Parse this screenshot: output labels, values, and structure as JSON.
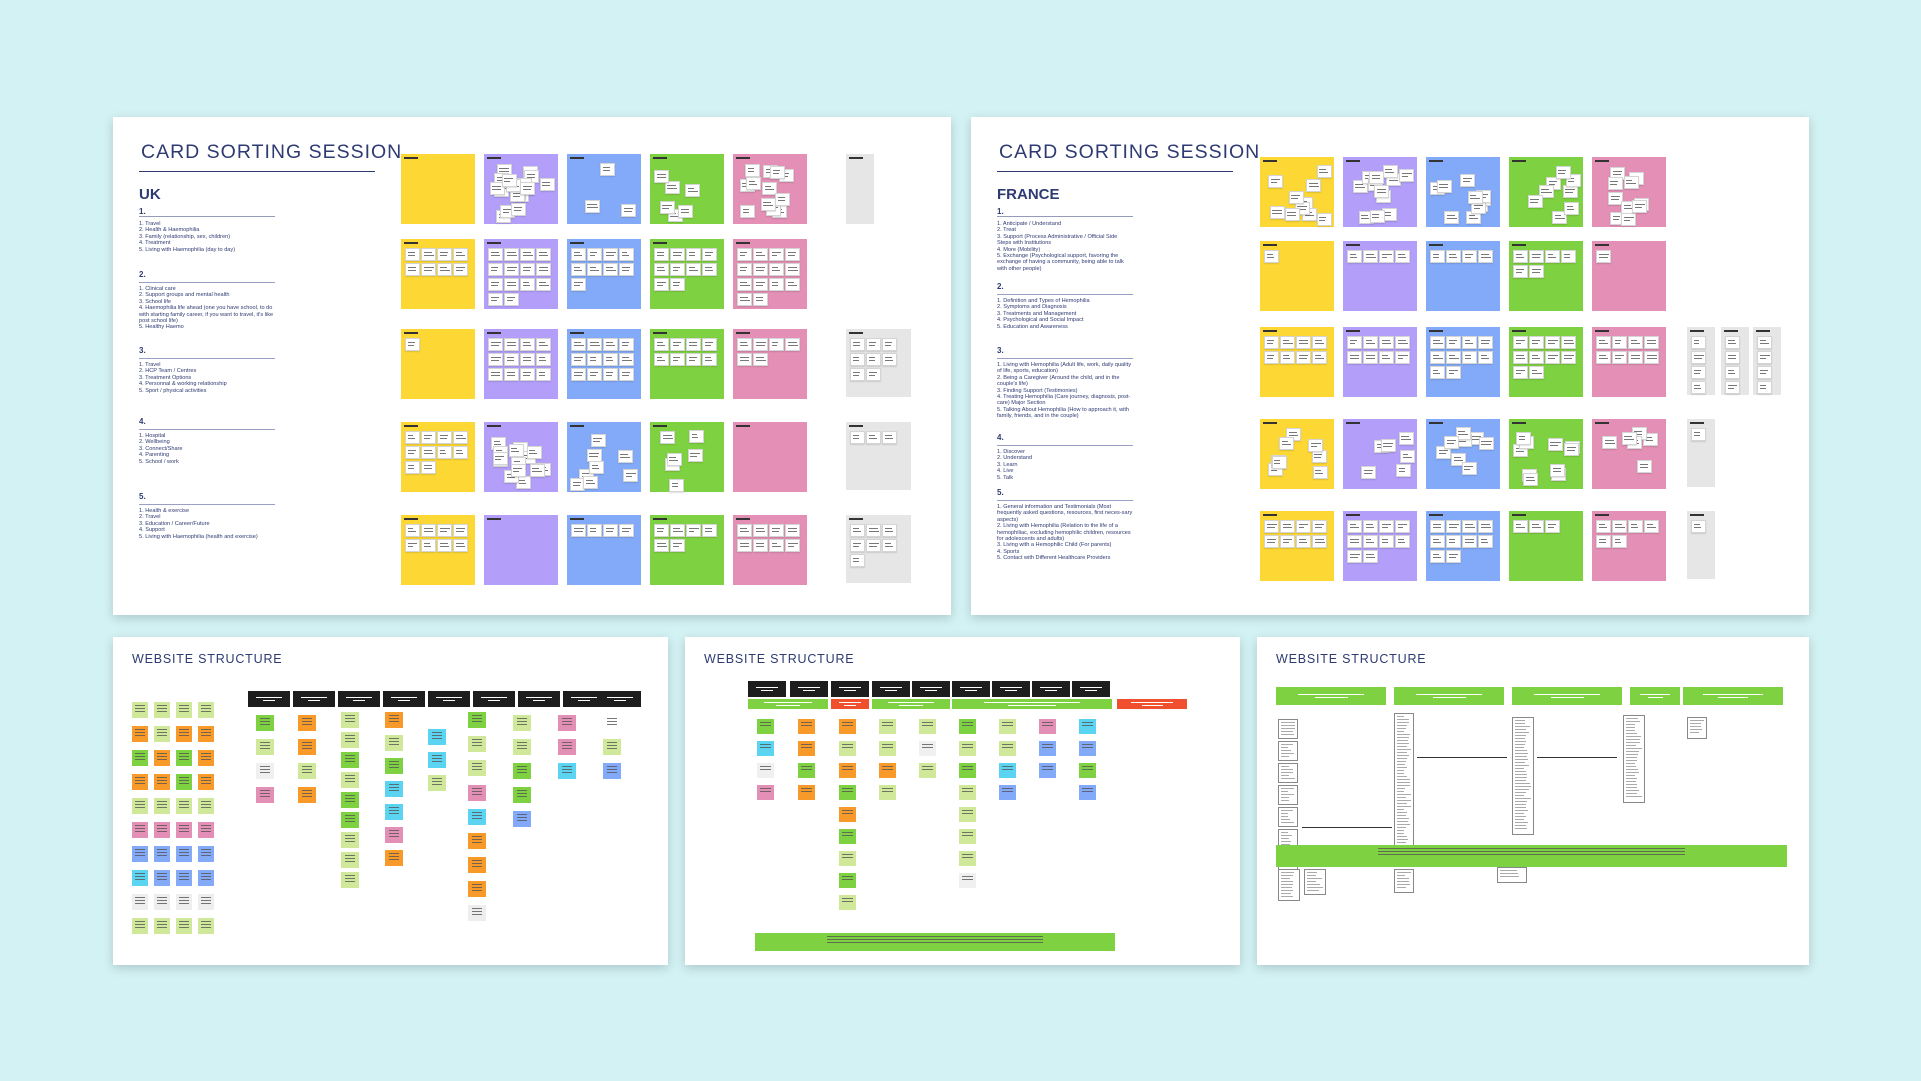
{
  "colors": {
    "background": "#d3f2f4",
    "title": "#2e3a72",
    "yellow": "#fdd835",
    "purple": "#b39ffa",
    "blue": "#82aaf9",
    "green": "#7ed140",
    "pink": "#e48fb5",
    "grey": "#e6e6e6",
    "black": "#1d1d1d",
    "red": "#ef4f2d",
    "orange": "#f89a2a",
    "lime": "#cfe89a",
    "cyan": "#5bd4f2"
  },
  "boards": {
    "uk": {
      "title": "CARD SORTING SESSION",
      "country": "UK",
      "rounds": [
        {
          "num": "1.",
          "text": "1. Travel\n2. Health & Haemophilia\n3. Family (relationship, sex, children)\n4. Treatment\n5. Living with Haemophilia (day to day)"
        },
        {
          "num": "2.",
          "text": "1. Clinical care\n2. Support groups and mental health\n3. School life\n4. Haemophilia life ahead (one you have school, to do with starting family career, if you want to travel, it's like post school life)\n5. Healthy Haemo"
        },
        {
          "num": "3.",
          "text": "1. Travel\n2. HCP Team / Centres\n3. Treatment Options\n4. Personnal & working relationship\n5. Sport / physical activities"
        },
        {
          "num": "4.",
          "text": "1. Hospital\n2. Wellbeing\n3. Connect/Share\n4. Parenting\n5. School / work"
        },
        {
          "num": "5.",
          "text": "1. Health & exercise\n2. Travel\n3. Education / Career/Future\n4. Support\n5. Living with Haemophilia (health and exercise)"
        }
      ]
    },
    "france": {
      "title": "CARD SORTING SESSION",
      "country": "FRANCE",
      "rounds": [
        {
          "num": "1.",
          "text": "1. Anticipate / Understand\n2. Treat\n3. Support (Process Administrative / Official Side Steps with Institutions\n4. More (Mobility)\n5. Exchange (Psychological support, favoring the exchange of having a community, being able to talk with other people)"
        },
        {
          "num": "2.",
          "text": "1. Definition and Types of Hemophilia\n2. Symptoms and Diagnosis\n3. Treatments and Management\n4. Psychological and Social Impact\n5. Education and Awareness"
        },
        {
          "num": "3.",
          "text": "1. Living with Hemophilia (Adult life, work, daily quality of life, sports, education)\n2. Being a Caregiver (Around the child, and in the couple's life)\n3. Finding Support (Testimonies)\n4. Treating Hemophilia (Care journey, diagnosis, post-care) Major Section\n5. Talking About Hemophilia (How to approach it, with family, friends, and in the couple)"
        },
        {
          "num": "4.",
          "text": "1. Discover\n2. Understand\n3. Learn\n4. Live\n5. Talk"
        },
        {
          "num": "5.",
          "text": "1. General information and Testimonials (Most frequently asked questions, resources, first neces-sary aspects)\n2. Living with Hemophilia (Relation to the life of a hemophiliac, excluding hemophilic children, resources for adolescents and adults)\n3. Living with a Hemophilic Child (For parents)\n4. Sports\n5. Contact with Different Healthcare Providers"
        }
      ]
    },
    "ws1": {
      "title": "WEBSITE STRUCTURE"
    },
    "ws2": {
      "title": "WEBSITE STRUCTURE"
    },
    "ws3": {
      "title": "WEBSITE STRUCTURE"
    }
  }
}
